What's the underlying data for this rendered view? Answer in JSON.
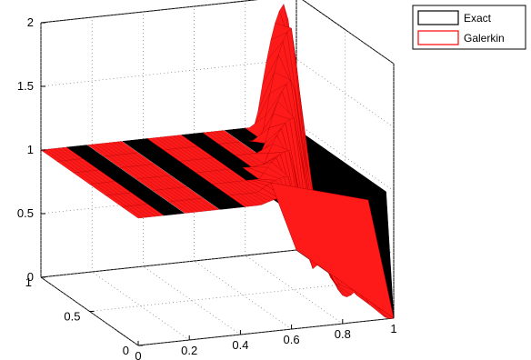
{
  "chart_data": {
    "type": "surface3d",
    "title": "",
    "xlabel": "",
    "ylabel": "",
    "zlabel": "",
    "xlim": [
      0,
      1
    ],
    "ylim": [
      0,
      1
    ],
    "zlim": [
      0,
      2
    ],
    "x_ticks": [
      "0",
      "0.2",
      "0.4",
      "0.6",
      "0.8",
      "1"
    ],
    "y_ticks": [
      "0",
      "0.5",
      "1"
    ],
    "z_ticks": [
      "0",
      "0.5",
      "1",
      "1.5",
      "2"
    ],
    "grid": true,
    "legend_position": "top-right",
    "series": [
      {
        "name": "Exact",
        "color": "#000000",
        "description_of_shape": "step profile: z = 1 on the plateau behind the moving front, z = 0 ahead of it",
        "plateau_z": 1,
        "front_x": [
          0.9,
          0.92,
          0.94,
          0.95,
          0.96,
          0.97,
          0.98,
          0.99,
          1.0
        ]
      },
      {
        "name": "Galerkin",
        "color": "#ff0000",
        "plateau_z": 1,
        "peak_z": [
          1.05,
          1.1,
          1.2,
          1.35,
          1.55,
          1.85,
          1.95
        ],
        "front_x": [
          0.6,
          0.65,
          0.72,
          0.8,
          0.86,
          0.92,
          0.96
        ]
      }
    ]
  }
}
